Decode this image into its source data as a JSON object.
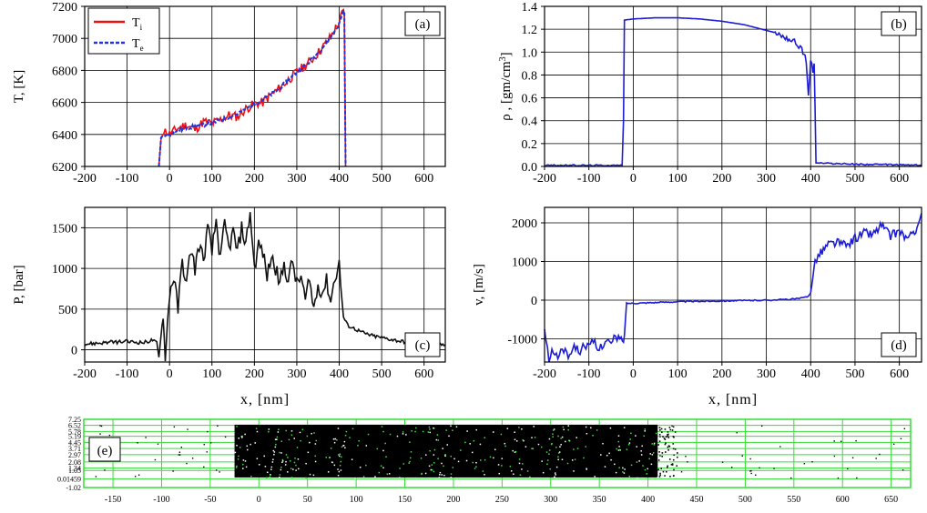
{
  "chart_data": [
    {
      "id": "a",
      "type": "line",
      "panel_label": "(a)",
      "ylabel": "T, [K]",
      "xlabel": "",
      "xlim": [
        -200,
        650
      ],
      "ylim": [
        6200,
        7200
      ],
      "xticks": [
        -200,
        -100,
        0,
        100,
        200,
        300,
        400,
        500,
        600
      ],
      "yticks": [
        6200,
        6400,
        6600,
        6800,
        7000,
        7200
      ],
      "grid": true,
      "legend_position": "top-left",
      "series": [
        {
          "name": "T",
          "name_sub": "i",
          "color": "#ee1111",
          "style": "solid",
          "x": [
            -25,
            -20,
            -10,
            0,
            20,
            40,
            60,
            80,
            100,
            120,
            140,
            160,
            180,
            200,
            220,
            240,
            260,
            280,
            300,
            320,
            340,
            360,
            380,
            400,
            410,
            412,
            415
          ],
          "y": [
            6200,
            6380,
            6420,
            6400,
            6440,
            6460,
            6430,
            6480,
            6470,
            6490,
            6520,
            6510,
            6560,
            6590,
            6600,
            6650,
            6690,
            6740,
            6790,
            6830,
            6880,
            6940,
            7010,
            7100,
            7180,
            7150,
            6200
          ]
        },
        {
          "name": "T",
          "name_sub": "e",
          "color": "#2233dd",
          "style": "dashed",
          "x": [
            -25,
            -20,
            -10,
            0,
            20,
            40,
            60,
            80,
            100,
            120,
            140,
            160,
            180,
            200,
            220,
            240,
            260,
            280,
            300,
            320,
            340,
            360,
            380,
            400,
            410,
            412,
            415
          ],
          "y": [
            6200,
            6380,
            6400,
            6400,
            6420,
            6440,
            6450,
            6460,
            6470,
            6490,
            6510,
            6530,
            6560,
            6590,
            6620,
            6650,
            6690,
            6740,
            6790,
            6830,
            6880,
            6940,
            7010,
            7090,
            7170,
            7170,
            6200
          ]
        }
      ]
    },
    {
      "id": "b",
      "type": "line",
      "panel_label": "(b)",
      "ylabel": "ρ , [gm/cm",
      "ylabel_sup": "3",
      "ylabel_close": "]",
      "xlabel": "",
      "xlim": [
        -200,
        650
      ],
      "ylim": [
        0.0,
        1.4
      ],
      "xticks": [
        -200,
        -100,
        0,
        100,
        200,
        300,
        400,
        500,
        600
      ],
      "yticks": [
        0.0,
        0.2,
        0.4,
        0.6,
        0.8,
        1.0,
        1.2,
        1.4
      ],
      "ytick_labels": [
        "0.0",
        "0.2",
        "0.4",
        "0.6",
        "0.8",
        "1.0",
        "1.2",
        "1.4"
      ],
      "grid": true,
      "series": [
        {
          "color": "#1c1cd6",
          "x": [
            -200,
            -100,
            -25,
            -22,
            -20,
            0,
            50,
            100,
            150,
            200,
            250,
            300,
            320,
            340,
            360,
            370,
            380,
            385,
            390,
            395,
            400,
            405,
            408,
            410,
            412,
            420,
            500,
            600,
            650
          ],
          "y": [
            0.01,
            0.01,
            0.01,
            0.4,
            1.28,
            1.29,
            1.3,
            1.3,
            1.29,
            1.27,
            1.24,
            1.19,
            1.17,
            1.14,
            1.1,
            1.07,
            1.04,
            0.98,
            0.92,
            0.6,
            0.95,
            0.82,
            0.9,
            0.5,
            0.03,
            0.03,
            0.02,
            0.015,
            0.01
          ]
        }
      ]
    },
    {
      "id": "c",
      "type": "line",
      "panel_label": "(c)",
      "ylabel": "P, [bar]",
      "xlabel": "x, [nm]",
      "xlim": [
        -200,
        650
      ],
      "ylim": [
        -150,
        1750
      ],
      "xticks": [
        -200,
        -100,
        0,
        100,
        200,
        300,
        400,
        500,
        600
      ],
      "yticks": [
        0,
        500,
        1000,
        1500
      ],
      "grid": true,
      "series": [
        {
          "color": "#111111",
          "x": [
            -200,
            -150,
            -100,
            -60,
            -40,
            -30,
            -25,
            -20,
            -15,
            -10,
            -5,
            0,
            10,
            20,
            30,
            40,
            50,
            60,
            70,
            80,
            90,
            100,
            110,
            120,
            130,
            140,
            150,
            160,
            170,
            180,
            190,
            200,
            210,
            220,
            230,
            240,
            250,
            260,
            270,
            280,
            290,
            300,
            310,
            320,
            330,
            340,
            350,
            360,
            370,
            380,
            390,
            400,
            410,
            420,
            440,
            460,
            480,
            500,
            550,
            600,
            650
          ],
          "y": [
            70,
            90,
            100,
            90,
            120,
            80,
            -100,
            200,
            400,
            -120,
            300,
            700,
            900,
            500,
            1100,
            800,
            1250,
            1000,
            1300,
            1100,
            1500,
            1200,
            1600,
            1100,
            1550,
            1250,
            1450,
            1200,
            1500,
            1300,
            1700,
            1000,
            1300,
            1200,
            900,
            1150,
            1000,
            800,
            1050,
            850,
            1100,
            800,
            900,
            600,
            850,
            500,
            800,
            700,
            850,
            600,
            900,
            1050,
            400,
            300,
            250,
            200,
            170,
            150,
            100,
            80,
            60
          ]
        }
      ]
    },
    {
      "id": "d",
      "type": "line",
      "panel_label": "(d)",
      "ylabel": "v, [m/s]",
      "xlabel": "x, [nm]",
      "xlim": [
        -200,
        650
      ],
      "ylim": [
        -1600,
        2400
      ],
      "xticks": [
        -200,
        -100,
        0,
        100,
        200,
        300,
        400,
        500,
        600
      ],
      "yticks": [
        -1000,
        0,
        1000,
        2000
      ],
      "grid": true,
      "series": [
        {
          "color": "#1c1cd6",
          "x": [
            -200,
            -190,
            -180,
            -170,
            -160,
            -150,
            -140,
            -130,
            -120,
            -110,
            -100,
            -90,
            -80,
            -70,
            -60,
            -50,
            -40,
            -30,
            -22,
            -20,
            -15,
            0,
            50,
            100,
            150,
            200,
            250,
            300,
            350,
            380,
            395,
            400,
            405,
            410,
            420,
            440,
            460,
            480,
            500,
            520,
            540,
            560,
            580,
            600,
            620,
            640,
            650
          ],
          "y": [
            -800,
            -1550,
            -1300,
            -1500,
            -1200,
            -1450,
            -1300,
            -1200,
            -1350,
            -1100,
            -1250,
            -1050,
            -1300,
            -1150,
            -1000,
            -1150,
            -950,
            -1000,
            -1100,
            -900,
            -80,
            -80,
            -60,
            -40,
            -30,
            -20,
            -10,
            0,
            20,
            50,
            100,
            200,
            600,
            1050,
            1200,
            1450,
            1500,
            1400,
            1600,
            1750,
            1700,
            1950,
            1650,
            1800,
            1550,
            1900,
            2250
          ]
        }
      ]
    },
    {
      "id": "e",
      "type": "scatter",
      "panel_label": "(e)",
      "xlim": [
        -180,
        670
      ],
      "ylim": [
        -1.02,
        7.25
      ],
      "xticks": [
        -150,
        -100,
        -50,
        0,
        50,
        100,
        150,
        200,
        250,
        300,
        350,
        400,
        450,
        500,
        550,
        600,
        650
      ],
      "ytick_labels": [
        "7.25",
        "6.52",
        "5.78",
        "5.19",
        "4.45",
        "3.71",
        "2.97",
        "2.08",
        "1.34",
        "1.05",
        "0.01459",
        "-1.02"
      ],
      "ytick_values": [
        7.25,
        6.52,
        5.78,
        5.19,
        4.45,
        3.71,
        2.97,
        2.08,
        1.34,
        1.05,
        0.01459,
        -1.02
      ],
      "grid": true,
      "grid_color": "#33dd33",
      "dense_region_x": [
        -25,
        410
      ],
      "dense_region_y": [
        0.2,
        6.6
      ],
      "point_color": "#000000"
    }
  ]
}
